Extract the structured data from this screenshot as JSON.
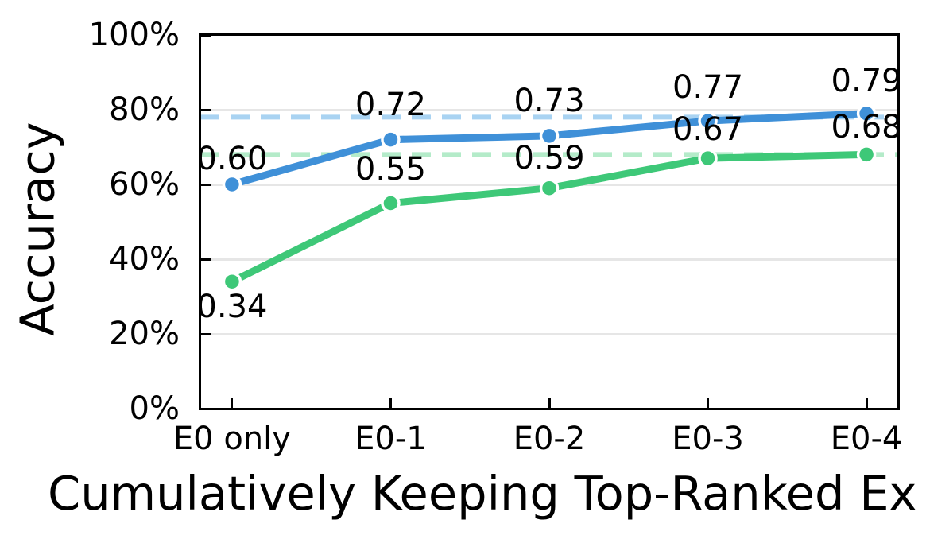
{
  "chart_data": {
    "type": "line",
    "title": "",
    "xlabel": "Cumulatively Keeping Top-Ranked Ex",
    "ylabel": "Accuracy",
    "categories": [
      "E0 only",
      "E0-1",
      "E0-2",
      "E0-3",
      "E0-4"
    ],
    "series": [
      {
        "name": "blue-series",
        "color": "#3f90d8",
        "values": [
          0.6,
          0.72,
          0.73,
          0.77,
          0.79
        ],
        "labels": [
          "0.60",
          "0.72",
          "0.73",
          "0.77",
          "0.79"
        ]
      },
      {
        "name": "green-series",
        "color": "#3ec878",
        "values": [
          0.34,
          0.55,
          0.59,
          0.67,
          0.68
        ],
        "labels": [
          "0.34",
          "0.55",
          "0.59",
          "0.67",
          "0.68"
        ]
      }
    ],
    "baselines": [
      {
        "name": "blue-dashed-baseline",
        "value": 0.78,
        "color": "#a9d3f2"
      },
      {
        "name": "green-dashed-baseline",
        "value": 0.68,
        "color": "#b4ebc9"
      }
    ],
    "yticks": [
      {
        "value": 0,
        "label": "0%"
      },
      {
        "value": 20,
        "label": "20%"
      },
      {
        "value": 40,
        "label": "40%"
      },
      {
        "value": 60,
        "label": "60%"
      },
      {
        "value": 80,
        "label": "80%"
      },
      {
        "value": 100,
        "label": "100%"
      }
    ],
    "ylim": [
      0,
      100
    ],
    "grid": true,
    "legend": "none",
    "colors": {
      "axis": "#000000",
      "gridline": "#e6e6e6",
      "text": "#000000",
      "background": "#ffffff"
    }
  }
}
